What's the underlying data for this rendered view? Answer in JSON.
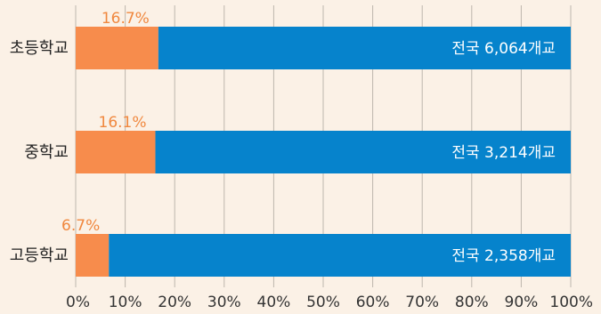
{
  "chart_data": {
    "type": "bar",
    "orientation": "horizontal",
    "stacked": true,
    "categories": [
      "초등학교",
      "중학교",
      "고등학교"
    ],
    "series": [
      {
        "values": [
          16.7,
          16.1,
          6.7
        ],
        "color": "#f78c4c"
      },
      {
        "values": [
          83.3,
          83.9,
          93.3
        ],
        "color": "#0683cc"
      }
    ],
    "value_labels": [
      "16.7%",
      "16.1%",
      "6.7%"
    ],
    "total_labels": [
      "전국 6,064개교",
      "전국 3,214개교",
      "전국 2,358개교"
    ],
    "x_ticks": [
      "0%",
      "10%",
      "20%",
      "30%",
      "40%",
      "50%",
      "60%",
      "70%",
      "80%",
      "90%",
      "100%"
    ],
    "xlim": [
      0,
      100
    ],
    "grid": true,
    "title": "",
    "xlabel": "",
    "ylabel": ""
  }
}
